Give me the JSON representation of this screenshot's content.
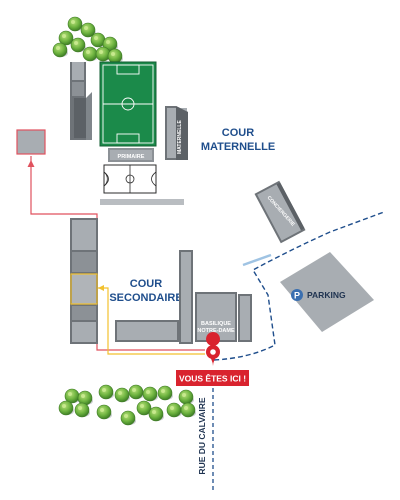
{
  "labels": {
    "cour_maternelle_1": "COUR",
    "cour_maternelle_2": "MATERNELLE",
    "cour_secondaire_1": "COUR",
    "cour_secondaire_2": "SECONDAIRE",
    "primaire": "PRIMAIRE",
    "maternelle": "MATERNELLE",
    "conciergerie": "CONCIERGERIE",
    "basilique_1": "BASILIQUE",
    "basilique_2": "NOTRE-DAME",
    "parking_icon": "P",
    "parking": "PARKING",
    "you_are_here": "VOUS ÊTES ICI !",
    "street": "RUE DU CALVAIRE"
  },
  "colors": {
    "building_top": "#a8adb2",
    "building_side": "#6e7378",
    "field_green": "#1b8a4a",
    "route_red": "#e0525e",
    "route_yellow": "#f2c12e",
    "path_blue": "#1f4e8c",
    "label_blue": "#1f4e8c",
    "marker_red": "#d9232e",
    "tree_green": "#6db33f"
  },
  "icons": {
    "location_marker": "map-pin-icon",
    "parking": "parking-icon",
    "trees": "tree-icon"
  }
}
